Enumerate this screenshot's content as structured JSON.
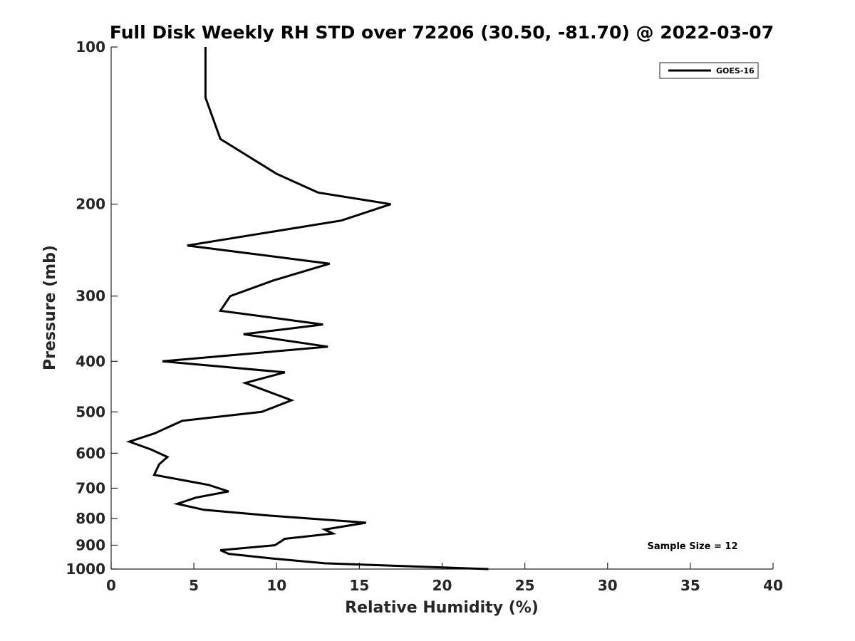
{
  "chart_data": {
    "type": "line",
    "title": "Full Disk Weekly RH STD over 72206 (30.50, -81.70) @ 2022-03-07",
    "xlabel": "Relative Humidity (%)",
    "ylabel": "Pressure (mb)",
    "xlim": [
      0,
      40
    ],
    "ylim": [
      100,
      1000
    ],
    "y_scale": "log",
    "y_reversed": true,
    "x_ticks": [
      "0",
      "5",
      "10",
      "15",
      "20",
      "25",
      "30",
      "35",
      "40"
    ],
    "y_ticks": [
      "100",
      "200",
      "300",
      "400",
      "500",
      "600",
      "700",
      "800",
      "900",
      "1000"
    ],
    "legend_position": "top-right",
    "annotation": "Sample Size = 12",
    "series": [
      {
        "name": "GOES-16",
        "color": "#000000",
        "points": [
          [
            5.7,
            100
          ],
          [
            5.7,
            125
          ],
          [
            6.6,
            150
          ],
          [
            10.0,
            175
          ],
          [
            12.5,
            190
          ],
          [
            16.9,
            200
          ],
          [
            13.9,
            215
          ],
          [
            4.6,
            240
          ],
          [
            13.2,
            260
          ],
          [
            9.8,
            280
          ],
          [
            7.2,
            300
          ],
          [
            6.6,
            320
          ],
          [
            12.8,
            340
          ],
          [
            8.0,
            355
          ],
          [
            13.1,
            375
          ],
          [
            3.1,
            400
          ],
          [
            10.5,
            420
          ],
          [
            8.1,
            440
          ],
          [
            10.9,
            475
          ],
          [
            9.1,
            500
          ],
          [
            4.3,
            520
          ],
          [
            2.6,
            550
          ],
          [
            1.1,
            570
          ],
          [
            2.4,
            590
          ],
          [
            3.4,
            610
          ],
          [
            2.9,
            630
          ],
          [
            2.6,
            660
          ],
          [
            5.9,
            690
          ],
          [
            7.1,
            710
          ],
          [
            5.1,
            730
          ],
          [
            4.0,
            750
          ],
          [
            5.6,
            770
          ],
          [
            9.6,
            790
          ],
          [
            15.4,
            815
          ],
          [
            12.9,
            840
          ],
          [
            13.4,
            855
          ],
          [
            10.5,
            875
          ],
          [
            9.9,
            900
          ],
          [
            6.6,
            920
          ],
          [
            7.1,
            935
          ],
          [
            9.8,
            955
          ],
          [
            12.9,
            975
          ],
          [
            22.8,
            1000
          ]
        ]
      }
    ]
  }
}
